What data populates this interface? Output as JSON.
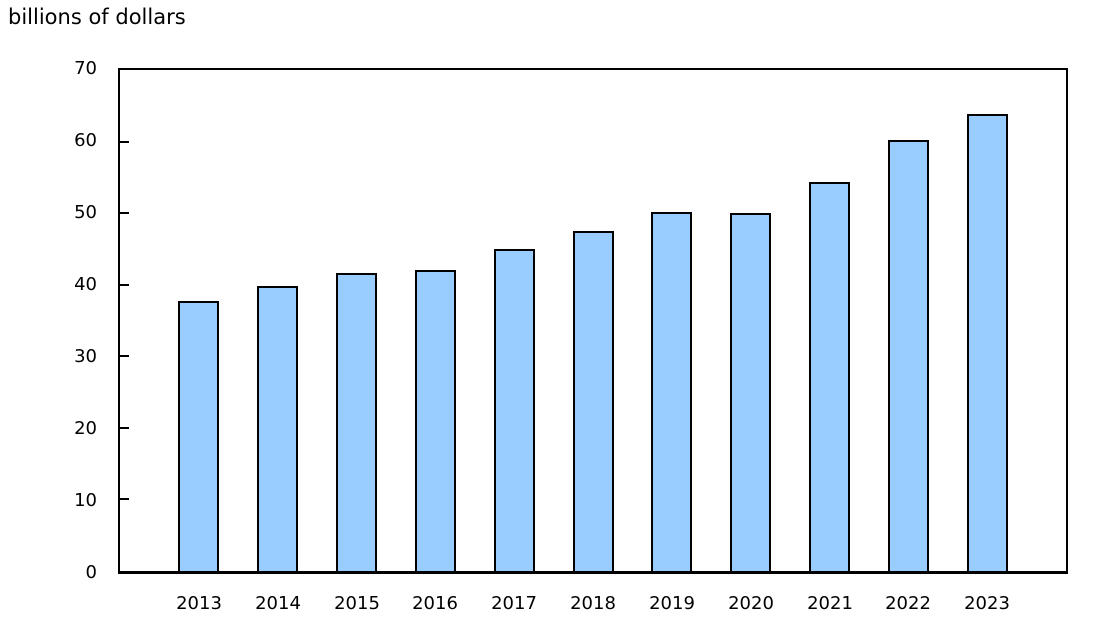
{
  "chart": {
    "unit_label": "billions of dollars"
  },
  "chart_data": {
    "type": "bar",
    "title": "billions of dollars",
    "categories": [
      "2013",
      "2014",
      "2015",
      "2016",
      "2017",
      "2018",
      "2019",
      "2020",
      "2021",
      "2022",
      "2023"
    ],
    "values": [
      37.7,
      39.8,
      41.6,
      42.1,
      45.0,
      47.5,
      50.1,
      50.0,
      54.4,
      60.2,
      63.9
    ],
    "xlabel": "",
    "ylabel": "billions of dollars",
    "ylim": [
      0,
      70
    ],
    "yticks": [
      0,
      10,
      20,
      30,
      40,
      50,
      60,
      70
    ],
    "grid": "off",
    "legend": "none",
    "bar_fill_color": "#99CCFF",
    "bar_border_color": "#000000",
    "axis_color": "#000000",
    "text_color": "#000000",
    "background_color": "#FFFFFF"
  }
}
